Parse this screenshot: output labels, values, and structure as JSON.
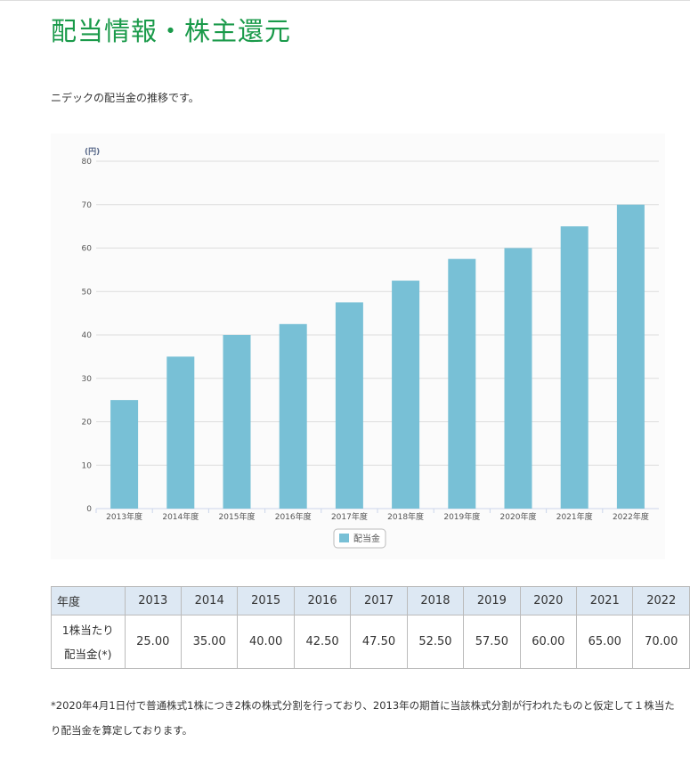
{
  "page_title": "配当情報・株主還元",
  "intro": "ニデックの配当金の推移です。",
  "chart_data": {
    "type": "bar",
    "ylabel": "(円)",
    "ylim": [
      0,
      80
    ],
    "yticks": [
      0,
      10,
      20,
      30,
      40,
      50,
      60,
      70,
      80
    ],
    "grid": true,
    "legend_position": "bottom",
    "categories": [
      "2013年度",
      "2014年度",
      "2015年度",
      "2016年度",
      "2017年度",
      "2018年度",
      "2019年度",
      "2020年度",
      "2021年度",
      "2022年度"
    ],
    "series": [
      {
        "name": "配当金",
        "color": "#78c0d6",
        "values": [
          25,
          35,
          40,
          42.5,
          47.5,
          52.5,
          57.5,
          60,
          65,
          70
        ]
      }
    ]
  },
  "table": {
    "header_label": "年度",
    "years": [
      "2013",
      "2014",
      "2015",
      "2016",
      "2017",
      "2018",
      "2019",
      "2020",
      "2021",
      "2022"
    ],
    "row_label_line1": "1株当たり",
    "row_label_line2": "配当金(*)",
    "values": [
      "25.00",
      "35.00",
      "40.00",
      "42.50",
      "47.50",
      "52.50",
      "57.50",
      "60.00",
      "65.00",
      "70.00"
    ]
  },
  "note": "*2020年4月1日付で普通株式1株につき2株の株式分割を行っており、2013年の期首に当該株式分割が行われたものと仮定して１株当たり配当金を算定しております。"
}
